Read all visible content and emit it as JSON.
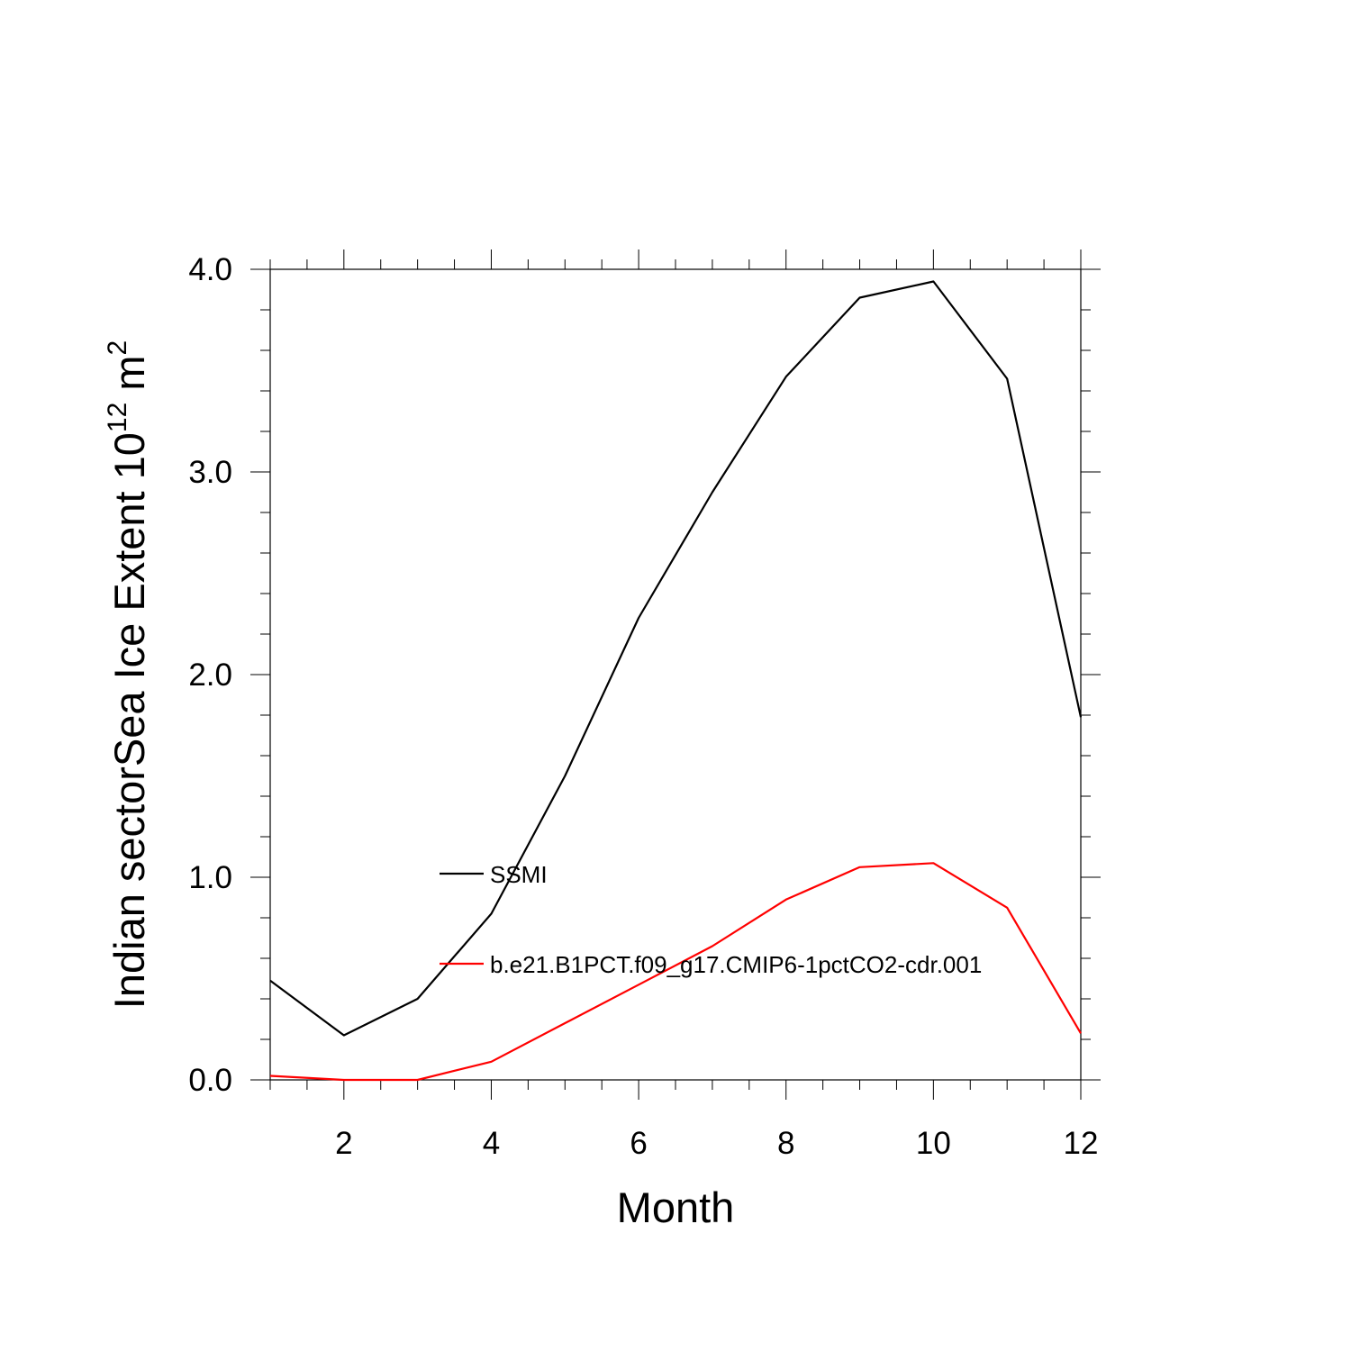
{
  "chart_data": {
    "type": "line",
    "xlabel": "Month",
    "ylabel_main": "Indian sectorSea Ice Extent 10",
    "ylabel_exp": "12",
    "ylabel_unit": " m",
    "ylabel_unit_exp": "2",
    "xlim": [
      1,
      12
    ],
    "ylim": [
      0,
      4
    ],
    "xticks": [
      2,
      4,
      6,
      8,
      10,
      12
    ],
    "yticks": [
      0,
      1,
      2,
      3,
      4
    ],
    "ytick_labels": [
      "0.0",
      "1.0",
      "2.0",
      "3.0",
      "4.0"
    ],
    "x": [
      1,
      2,
      3,
      4,
      5,
      6,
      7,
      8,
      9,
      10,
      11,
      12
    ],
    "series": [
      {
        "name": "SSMI",
        "color": "#000000",
        "values": [
          0.49,
          0.22,
          0.4,
          0.82,
          1.5,
          2.28,
          2.9,
          3.47,
          3.86,
          3.94,
          3.46,
          1.79
        ]
      },
      {
        "name": "b.e21.B1PCT.f09_g17.CMIP6-1pctCO2-cdr.001",
        "color": "#ff0000",
        "values": [
          0.02,
          0.0,
          0.0,
          0.09,
          0.28,
          0.47,
          0.66,
          0.89,
          1.05,
          1.07,
          0.85,
          0.23
        ]
      }
    ],
    "grid": false,
    "legend_placement": "center-left"
  }
}
